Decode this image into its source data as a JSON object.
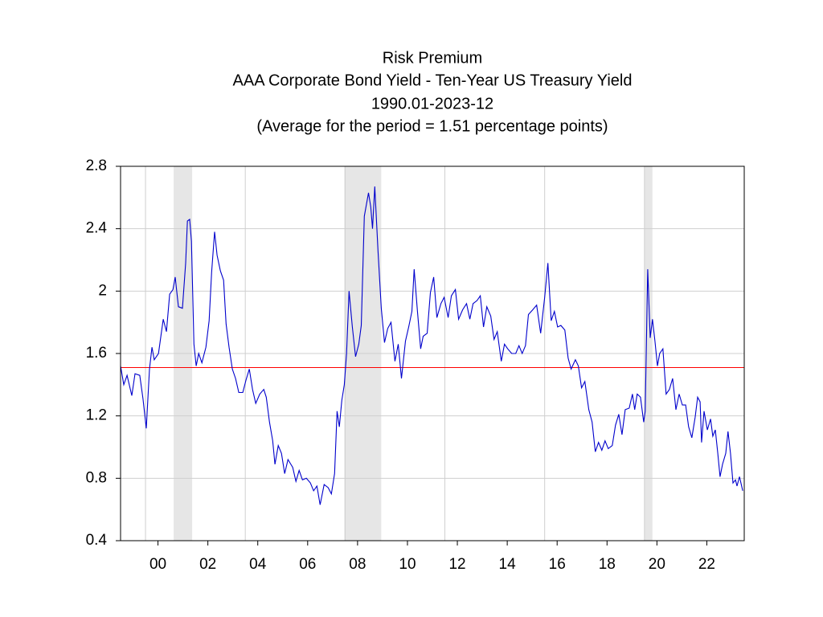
{
  "chart_data": {
    "type": "line",
    "title": "Risk Premium",
    "subtitle": [
      "AAA Corporate Bond Yield - Ten-Year US Treasury Yield",
      "1990.01-2023-12",
      "(Average for the period = 1.51 percentage points)"
    ],
    "x": [
      1999.0,
      1999.13,
      1999.26,
      1999.45,
      1999.58,
      1999.77,
      1999.9,
      2000.03,
      2000.16,
      2000.26,
      2000.35,
      2000.52,
      2000.71,
      2000.84,
      2000.97,
      2001.1,
      2001.19,
      2001.32,
      2001.48,
      2001.61,
      2001.68,
      2001.77,
      2001.84,
      2001.94,
      2002.03,
      2002.13,
      2002.26,
      2002.42,
      2002.55,
      2002.65,
      2002.77,
      2002.87,
      2003.0,
      2003.13,
      2003.23,
      2003.35,
      2003.48,
      2003.61,
      2003.74,
      2003.9,
      2004.03,
      2004.16,
      2004.29,
      2004.42,
      2004.58,
      2004.74,
      2004.84,
      2004.97,
      2005.1,
      2005.19,
      2005.32,
      2005.45,
      2005.58,
      2005.71,
      2005.9,
      2006.03,
      2006.16,
      2006.29,
      2006.45,
      2006.61,
      2006.74,
      2006.87,
      2007.0,
      2007.16,
      2007.32,
      2007.45,
      2007.58,
      2007.68,
      2007.77,
      2007.87,
      2007.97,
      2008.06,
      2008.16,
      2008.29,
      2008.42,
      2008.55,
      2008.65,
      2008.77,
      2008.94,
      2009.03,
      2009.1,
      2009.19,
      2009.32,
      2009.45,
      2009.58,
      2009.71,
      2009.84,
      2010.0,
      2010.13,
      2010.26,
      2010.42,
      2010.55,
      2010.68,
      2010.77,
      2010.9,
      2011.03,
      2011.13,
      2011.29,
      2011.42,
      2011.55,
      2011.68,
      2011.84,
      2011.97,
      2012.13,
      2012.26,
      2012.42,
      2012.55,
      2012.71,
      2012.87,
      2013.0,
      2013.13,
      2013.29,
      2013.42,
      2013.55,
      2013.68,
      2013.84,
      2013.97,
      2014.1,
      2014.26,
      2014.39,
      2014.52,
      2014.68,
      2014.84,
      2014.97,
      2015.1,
      2015.23,
      2015.35,
      2015.52,
      2015.68,
      2015.84,
      2016.0,
      2016.13,
      2016.26,
      2016.39,
      2016.52,
      2016.65,
      2016.81,
      2016.94,
      2017.06,
      2017.23,
      2017.35,
      2017.48,
      2017.61,
      2017.77,
      2017.9,
      2018.03,
      2018.16,
      2018.29,
      2018.42,
      2018.55,
      2018.71,
      2018.84,
      2018.97,
      2019.1,
      2019.23,
      2019.39,
      2019.52,
      2019.61,
      2019.71,
      2019.84,
      2019.97,
      2020.03,
      2020.13,
      2020.23,
      2020.32,
      2020.42,
      2020.52,
      2020.61,
      2020.74,
      2020.87,
      2021.0,
      2021.13,
      2021.26,
      2021.39,
      2021.52,
      2021.65,
      2021.77,
      2021.9,
      2022.03,
      2022.13,
      2022.23,
      2022.29,
      2022.39,
      2022.52,
      2022.65,
      2022.74,
      2022.84,
      2022.94,
      2023.03,
      2023.13,
      2023.26,
      2023.35,
      2023.45,
      2023.55,
      2023.65,
      2023.71,
      2023.81,
      2023.94
    ],
    "series": [
      {
        "name": "Risk Premium",
        "color": "#0000cc",
        "values": [
          1.52,
          1.4,
          1.46,
          1.33,
          1.47,
          1.46,
          1.31,
          1.12,
          1.5,
          1.64,
          1.56,
          1.6,
          1.82,
          1.74,
          1.98,
          2.01,
          2.09,
          1.9,
          1.89,
          2.18,
          2.45,
          2.46,
          2.32,
          1.66,
          1.52,
          1.6,
          1.54,
          1.64,
          1.81,
          2.12,
          2.38,
          2.23,
          2.13,
          2.07,
          1.79,
          1.64,
          1.5,
          1.44,
          1.35,
          1.35,
          1.43,
          1.5,
          1.37,
          1.28,
          1.34,
          1.37,
          1.32,
          1.16,
          1.04,
          0.89,
          1.01,
          0.96,
          0.83,
          0.92,
          0.87,
          0.78,
          0.85,
          0.79,
          0.8,
          0.77,
          0.72,
          0.75,
          0.63,
          0.76,
          0.74,
          0.7,
          0.83,
          1.23,
          1.13,
          1.3,
          1.4,
          1.6,
          2.0,
          1.77,
          1.58,
          1.66,
          1.78,
          2.48,
          2.63,
          2.54,
          2.4,
          2.67,
          2.26,
          1.89,
          1.67,
          1.76,
          1.8,
          1.55,
          1.66,
          1.44,
          1.68,
          1.77,
          1.87,
          2.14,
          1.87,
          1.63,
          1.71,
          1.73,
          1.99,
          2.09,
          1.83,
          1.92,
          1.96,
          1.83,
          1.97,
          2.01,
          1.82,
          1.88,
          1.92,
          1.82,
          1.92,
          1.94,
          1.97,
          1.77,
          1.9,
          1.84,
          1.69,
          1.74,
          1.55,
          1.66,
          1.63,
          1.6,
          1.6,
          1.65,
          1.6,
          1.65,
          1.85,
          1.88,
          1.91,
          1.73,
          1.96,
          2.18,
          1.81,
          1.87,
          1.77,
          1.78,
          1.75,
          1.57,
          1.5,
          1.56,
          1.52,
          1.38,
          1.42,
          1.24,
          1.16,
          0.97,
          1.03,
          0.98,
          1.04,
          0.99,
          1.01,
          1.14,
          1.21,
          1.08,
          1.24,
          1.25,
          1.34,
          1.24,
          1.34,
          1.32,
          1.16,
          1.23,
          2.14,
          1.7,
          1.82,
          1.68,
          1.52,
          1.6,
          1.63,
          1.34,
          1.37,
          1.44,
          1.24,
          1.34,
          1.27,
          1.27,
          1.13,
          1.06,
          1.19,
          1.32,
          1.29,
          1.03,
          1.23,
          1.11,
          1.18,
          1.07,
          1.11,
          0.96,
          0.81,
          0.89,
          0.96,
          1.1,
          0.96,
          0.77,
          0.79,
          0.75,
          0.81,
          0.72
        ]
      }
    ],
    "average": {
      "value": 1.51,
      "color": "#ff0000"
    },
    "shaded": [
      [
        2001.13,
        2001.87
      ],
      [
        2007.97,
        2009.45
      ],
      [
        2020.0,
        2020.32
      ]
    ],
    "xlim": [
      1999.0,
      2024.0
    ],
    "xticks": [
      {
        "value": 2000.5,
        "label": "00"
      },
      {
        "value": 2002.5,
        "label": "02"
      },
      {
        "value": 2004.5,
        "label": "04"
      },
      {
        "value": 2006.5,
        "label": "06"
      },
      {
        "value": 2008.5,
        "label": "08"
      },
      {
        "value": 2010.5,
        "label": "10"
      },
      {
        "value": 2012.5,
        "label": "12"
      },
      {
        "value": 2014.5,
        "label": "14"
      },
      {
        "value": 2016.5,
        "label": "16"
      },
      {
        "value": 2018.5,
        "label": "18"
      },
      {
        "value": 2020.5,
        "label": "20"
      },
      {
        "value": 2022.5,
        "label": "22"
      }
    ],
    "xgrid": [
      2000,
      2004,
      2008,
      2012,
      2016,
      2020
    ],
    "ylim": [
      0.4,
      2.8
    ],
    "yticks": [
      0.4,
      0.8,
      1.2,
      1.6,
      2.0,
      2.4,
      2.8
    ],
    "grid": true
  }
}
